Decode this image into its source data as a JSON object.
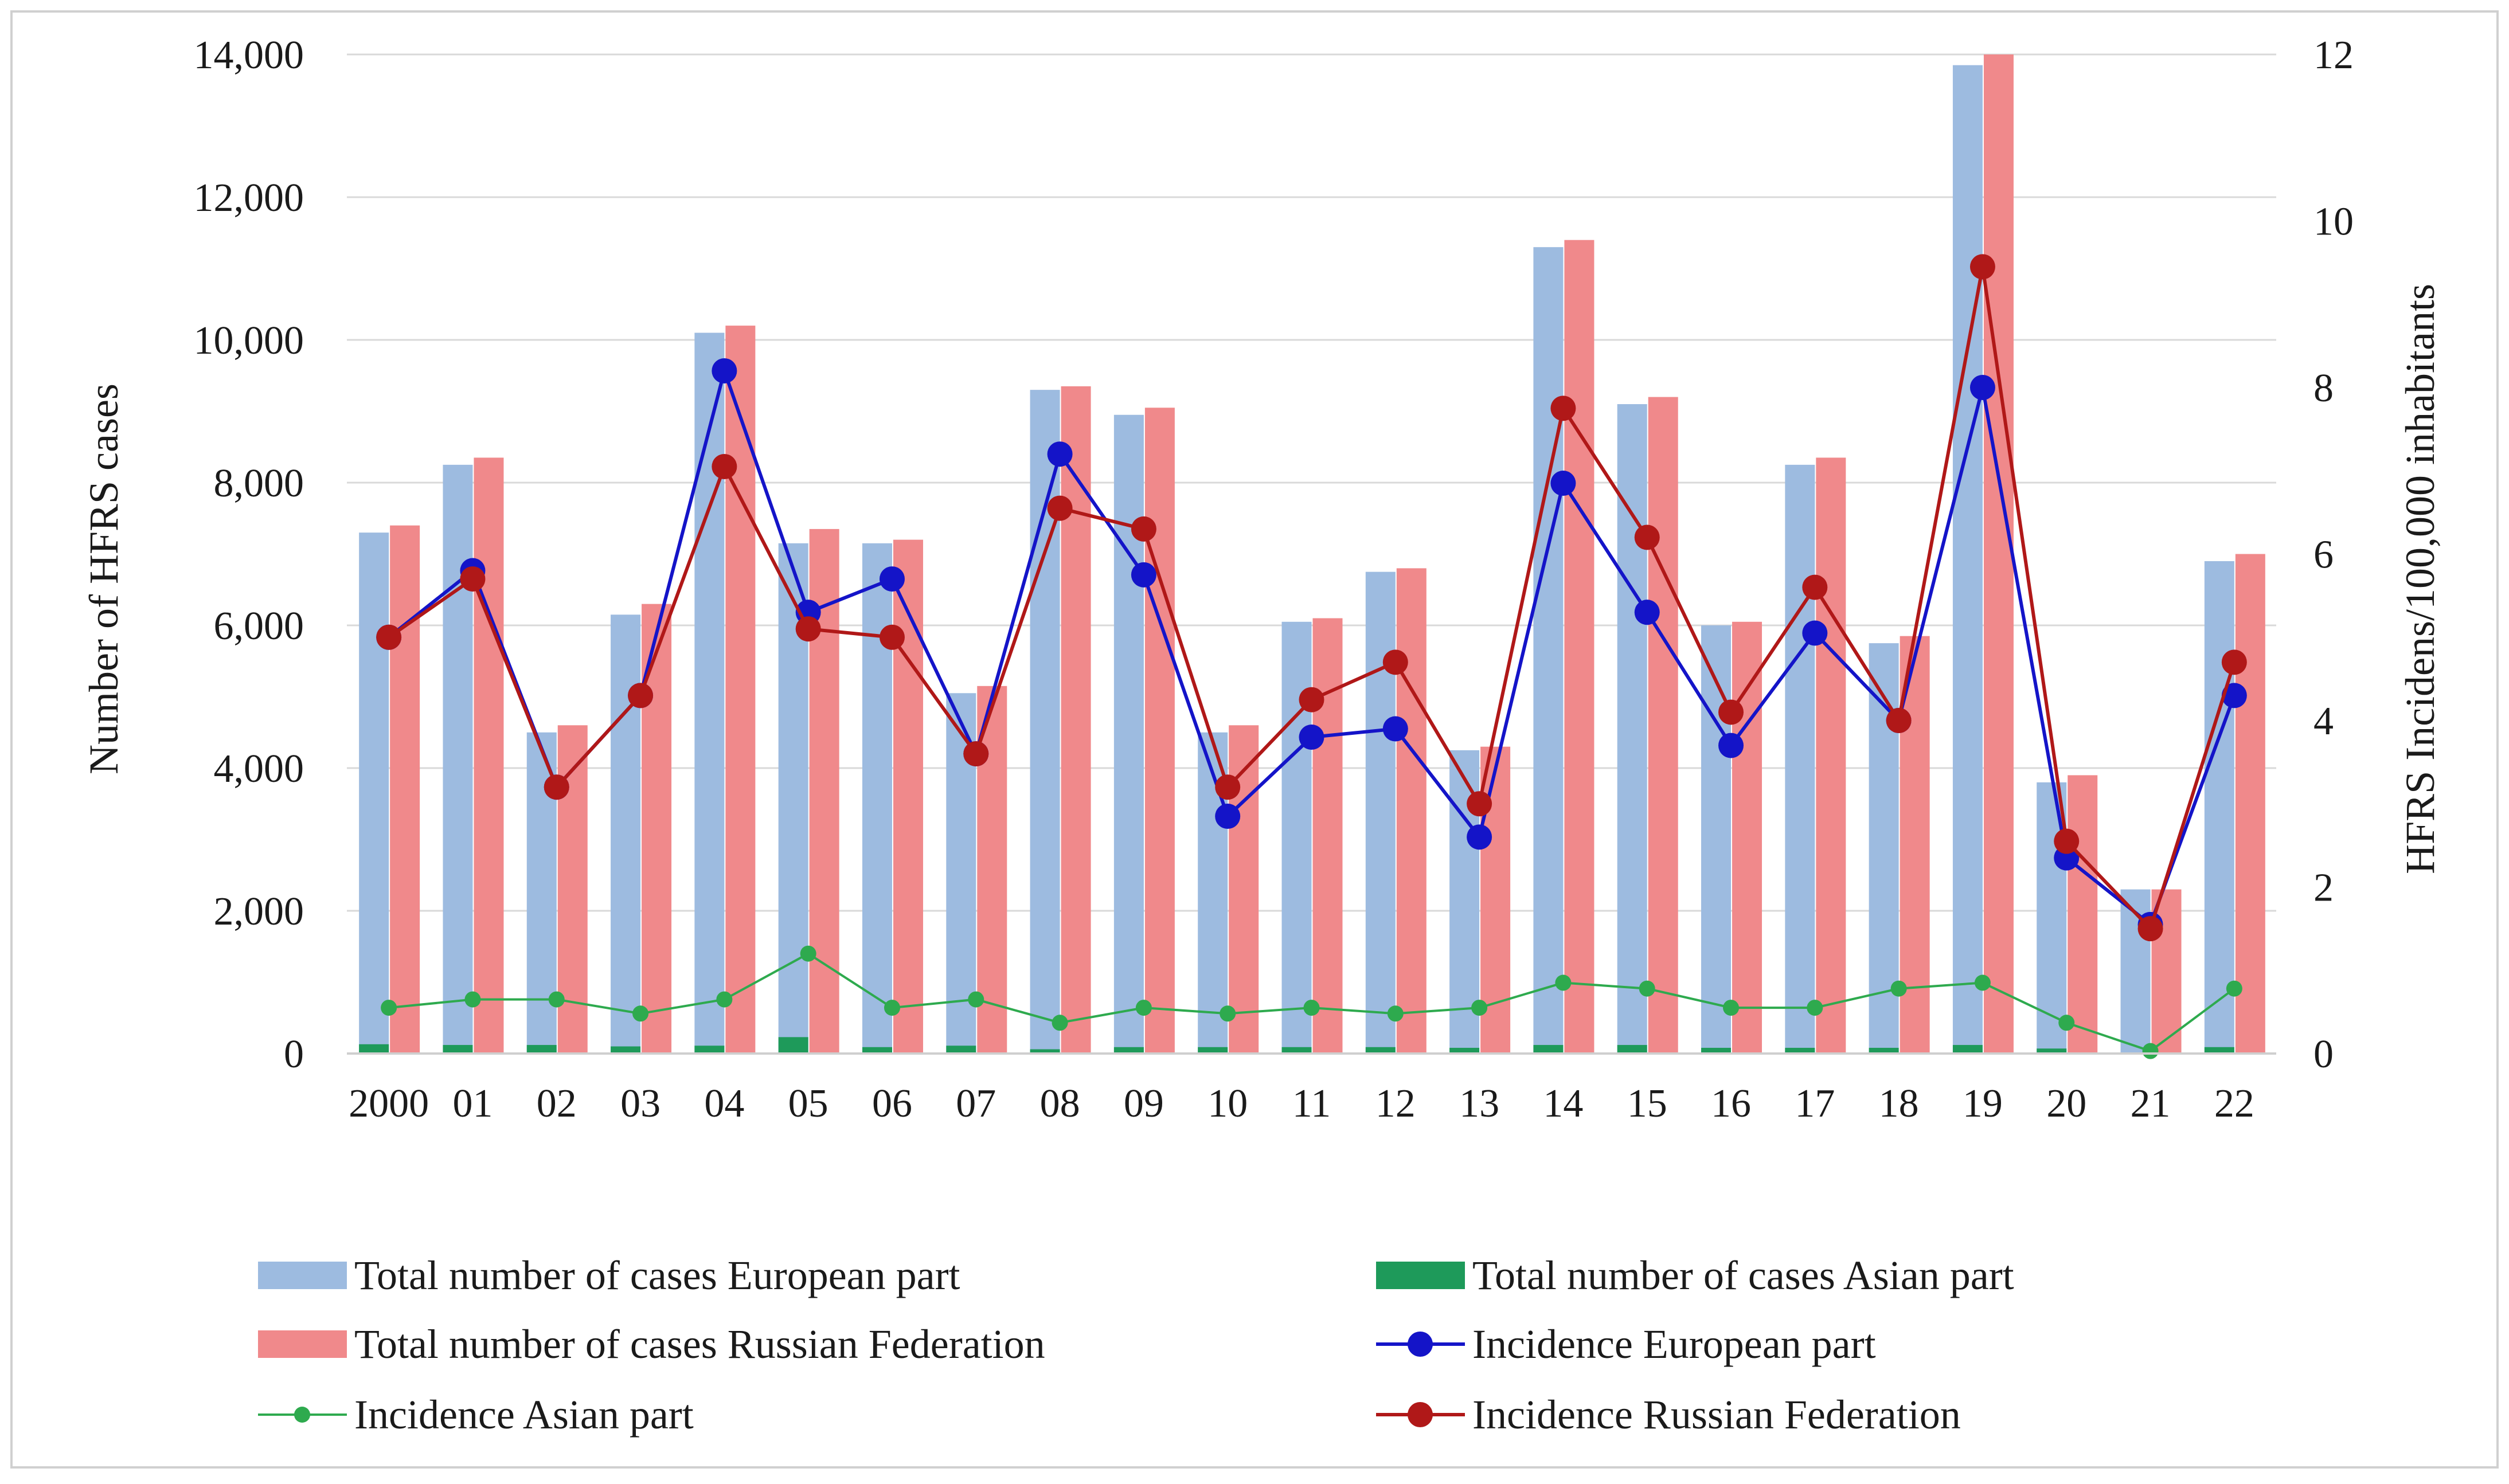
{
  "chart_data": {
    "type": "bar+line",
    "categories": [
      "2000",
      "01",
      "02",
      "03",
      "04",
      "05",
      "06",
      "07",
      "08",
      "09",
      "10",
      "11",
      "12",
      "13",
      "14",
      "15",
      "16",
      "17",
      "18",
      "19",
      "20",
      "21",
      "22"
    ],
    "left_axis": {
      "label": "Number of HFRS cases",
      "ylim": [
        0,
        14000
      ],
      "ticks": [
        0,
        2000,
        4000,
        6000,
        8000,
        10000,
        12000,
        14000
      ],
      "tick_labels": [
        "0",
        "2,000",
        "4,000",
        "6,000",
        "8,000",
        "10,000",
        "12,000",
        "14,000"
      ]
    },
    "right_axis": {
      "label": "HFRS Incidens/100,000 inhabitants",
      "ylim": [
        0,
        12
      ],
      "ticks": [
        0,
        2,
        4,
        6,
        8,
        10,
        12
      ],
      "tick_labels": [
        "0",
        "2",
        "4",
        "6",
        "8",
        "10",
        "12"
      ]
    },
    "bar_series": [
      {
        "name": "Total number of cases European part",
        "color": "#9dbbe0",
        "values": [
          7300,
          8250,
          4500,
          6150,
          10100,
          7150,
          7150,
          5050,
          9300,
          8950,
          4500,
          6050,
          6750,
          4250,
          11300,
          9100,
          6000,
          8250,
          5750,
          13850,
          3800,
          2300,
          6900
        ]
      },
      {
        "name": "Total number of cases Asian part",
        "color": "#1e9a5a",
        "values": [
          130,
          120,
          120,
          100,
          110,
          230,
          90,
          110,
          60,
          90,
          90,
          90,
          90,
          80,
          120,
          120,
          80,
          80,
          80,
          120,
          70,
          10,
          90
        ]
      },
      {
        "name": "Total number of cases Russian Federation",
        "color": "#f0898b",
        "values": [
          7400,
          8350,
          4600,
          6300,
          10200,
          7350,
          7200,
          5150,
          9350,
          9050,
          4600,
          6100,
          6800,
          4300,
          11400,
          9200,
          6050,
          8350,
          5850,
          14000,
          3900,
          2300,
          7000
        ]
      }
    ],
    "line_series": [
      {
        "name": "Incidence European part",
        "color": "#1414c8",
        "values": [
          5.0,
          5.8,
          3.2,
          4.3,
          8.2,
          5.3,
          5.7,
          3.6,
          7.2,
          5.75,
          2.85,
          3.8,
          3.9,
          2.6,
          6.85,
          5.3,
          3.7,
          5.05,
          4.0,
          8.0,
          2.35,
          1.55,
          4.3
        ]
      },
      {
        "name": "Incidence Asian part",
        "color": "#2eaa4e",
        "values": [
          0.55,
          0.65,
          0.65,
          0.48,
          0.65,
          1.2,
          0.55,
          0.65,
          0.37,
          0.55,
          0.48,
          0.55,
          0.48,
          0.55,
          0.85,
          0.78,
          0.55,
          0.55,
          0.78,
          0.85,
          0.37,
          0.03,
          0.78
        ]
      },
      {
        "name": "Incidence Russian Federation",
        "color": "#b01818",
        "values": [
          5.0,
          5.7,
          3.2,
          4.3,
          7.05,
          5.1,
          5.0,
          3.6,
          6.55,
          6.3,
          3.2,
          4.25,
          4.7,
          3.0,
          7.75,
          6.2,
          4.1,
          5.6,
          4.0,
          9.45,
          2.55,
          1.5,
          4.7
        ]
      }
    ],
    "legend": {
      "placement": "bottom",
      "items": [
        {
          "label": "Total number of cases European part",
          "kind": "bar",
          "color": "#9dbbe0"
        },
        {
          "label": "Total number of cases Asian part",
          "kind": "bar",
          "color": "#1e9a5a"
        },
        {
          "label": "Total number of cases Russian Federation",
          "kind": "bar",
          "color": "#f0898b"
        },
        {
          "label": "Incidence European part",
          "kind": "line",
          "color": "#1414c8"
        },
        {
          "label": "Incidence Asian part",
          "kind": "line",
          "color": "#2eaa4e"
        },
        {
          "label": "Incidence Russian Federation",
          "kind": "line",
          "color": "#b01818"
        }
      ]
    },
    "grid": true,
    "grid_color": "#d9d9d9",
    "axis_line_color": "#cfcfcf"
  }
}
